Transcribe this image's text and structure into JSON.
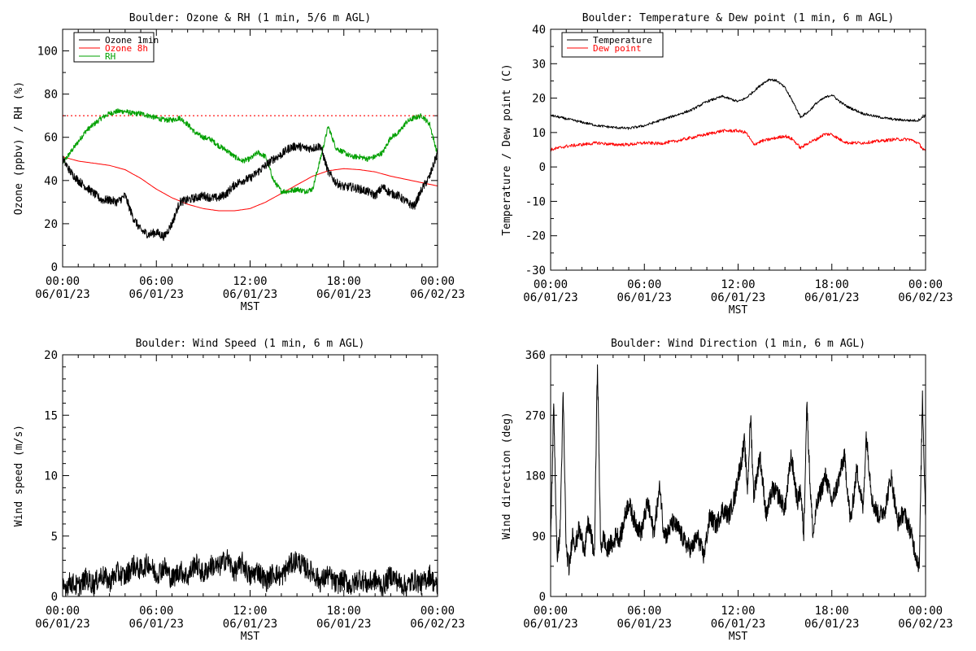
{
  "chart_data": [
    {
      "id": "ozone-rh",
      "type": "line",
      "title": "Boulder: Ozone & RH (1 min, 5/6 m AGL)",
      "ylabel": "Ozone (ppbv) / RH (%)",
      "xlabel": "MST",
      "ylim": [
        0,
        110
      ],
      "yticks": [
        0,
        20,
        40,
        60,
        80,
        100
      ],
      "ytick_labels": [
        "0",
        "20",
        "40",
        "60",
        "80",
        "100"
      ],
      "xlim": [
        0,
        24
      ],
      "xticks": [
        0,
        6,
        12,
        18,
        24
      ],
      "xtick_time_labels": [
        "00:00",
        "06:00",
        "12:00",
        "18:00",
        "00:00"
      ],
      "xtick_date_labels": [
        "06/01/23",
        "06/01/23",
        "06/01/23",
        "06/01/23",
        "06/02/23"
      ],
      "legend_position": "top-left",
      "reference_line": {
        "y": 70,
        "color": "#ff0000",
        "style": "dotted"
      },
      "series": [
        {
          "name": "Ozone 1min",
          "color": "#000000",
          "x": [
            0,
            0.5,
            1,
            1.5,
            2,
            2.5,
            3,
            3.5,
            4,
            4.5,
            5,
            5.5,
            6,
            6.5,
            7,
            7.5,
            8,
            8.5,
            9,
            9.5,
            10,
            10.5,
            11,
            11.5,
            12,
            12.5,
            13,
            13.5,
            14,
            14.5,
            15,
            15.5,
            16,
            16.5,
            17,
            17.5,
            18,
            18.5,
            19,
            19.5,
            20,
            20.5,
            21,
            21.5,
            22,
            22.5,
            23,
            23.5,
            24
          ],
          "values": [
            50,
            44,
            40,
            37,
            34,
            31,
            31,
            30,
            33,
            23,
            17,
            15,
            16,
            14,
            20,
            30,
            31,
            32,
            33,
            32,
            32,
            34,
            38,
            40,
            41,
            44,
            47,
            50,
            52,
            55,
            56,
            55,
            55,
            56,
            44,
            39,
            37,
            37,
            36,
            35,
            33,
            37,
            34,
            33,
            30,
            28,
            36,
            42,
            53
          ]
        },
        {
          "name": "Ozone 8h",
          "color": "#ff0000",
          "x": [
            0,
            1,
            2,
            3,
            4,
            5,
            6,
            7,
            8,
            9,
            10,
            11,
            12,
            13,
            14,
            15,
            16,
            17,
            18,
            19,
            20,
            21,
            22,
            23,
            24
          ],
          "values": [
            51,
            49,
            48,
            47,
            45,
            41,
            36,
            32,
            29,
            27,
            26,
            26,
            27,
            30,
            34,
            38,
            42,
            44.5,
            45.5,
            45,
            44,
            42,
            40.5,
            39,
            37.5
          ]
        },
        {
          "name": "RH",
          "color": "#00a000",
          "x": [
            0,
            0.5,
            1,
            1.5,
            2,
            2.5,
            3,
            3.5,
            4,
            4.5,
            5,
            5.5,
            6,
            6.5,
            7,
            7.5,
            8,
            8.5,
            9,
            9.5,
            10,
            10.5,
            11,
            11.5,
            12,
            12.5,
            13,
            13.5,
            14,
            14.5,
            15,
            15.5,
            16,
            16.5,
            17,
            17.5,
            18,
            18.5,
            19,
            19.5,
            20,
            20.5,
            21,
            21.5,
            22,
            22.5,
            23,
            23.5,
            24
          ],
          "values": [
            48,
            53,
            58,
            63,
            66,
            69,
            71,
            72,
            72,
            71,
            71,
            70,
            69,
            68,
            68,
            69,
            66,
            62,
            60,
            59,
            56,
            54,
            51,
            49,
            50,
            53,
            51,
            40,
            35,
            35,
            36,
            35,
            36,
            50,
            65,
            55,
            53,
            51,
            51,
            50,
            51,
            53,
            60,
            62,
            67,
            69,
            70,
            66,
            52
          ]
        }
      ]
    },
    {
      "id": "temp-dew",
      "type": "line",
      "title": "Boulder: Temperature & Dew point (1 min, 6 m AGL)",
      "ylabel": "Temperature / Dew point (C)",
      "xlabel": "MST",
      "ylim": [
        -30,
        40
      ],
      "yticks": [
        -30,
        -20,
        -10,
        0,
        10,
        20,
        30,
        40
      ],
      "ytick_labels": [
        "-30",
        "-20",
        "-10",
        "0",
        "10",
        "20",
        "30",
        "40"
      ],
      "xlim": [
        0,
        24
      ],
      "xticks": [
        0,
        6,
        12,
        18,
        24
      ],
      "xtick_time_labels": [
        "00:00",
        "06:00",
        "12:00",
        "18:00",
        "00:00"
      ],
      "xtick_date_labels": [
        "06/01/23",
        "06/01/23",
        "06/01/23",
        "06/01/23",
        "06/02/23"
      ],
      "legend_position": "top-left",
      "series": [
        {
          "name": "Temperature",
          "color": "#000000",
          "x": [
            0,
            1,
            2,
            3,
            4,
            5,
            6,
            7,
            8,
            9,
            10,
            11,
            12,
            12.5,
            13,
            13.5,
            14,
            14.5,
            15,
            15.5,
            16,
            16.5,
            17,
            17.5,
            18,
            18.5,
            19,
            20,
            21,
            22,
            23,
            23.5,
            24
          ],
          "values": [
            15,
            14,
            13,
            12,
            11.5,
            11.2,
            12,
            13.5,
            15,
            16.5,
            19,
            20.5,
            19,
            20,
            22,
            24,
            25.5,
            25,
            23,
            19,
            14.5,
            16,
            18.5,
            20,
            21,
            19,
            17.5,
            15.5,
            14.5,
            13.8,
            13.5,
            13.5,
            15
          ]
        },
        {
          "name": "Dew point",
          "color": "#ff0000",
          "x": [
            0,
            1,
            2,
            3,
            4,
            5,
            6,
            7,
            8,
            9,
            10,
            11,
            12,
            12.5,
            13,
            13.5,
            14,
            14.5,
            15,
            15.5,
            16,
            16.5,
            17,
            17.5,
            18,
            18.5,
            19,
            20,
            21,
            22,
            23,
            23.5,
            24
          ],
          "values": [
            5,
            6,
            6.5,
            7,
            6.5,
            6.5,
            7,
            6.8,
            7.5,
            8.5,
            9.5,
            10.5,
            10.5,
            10,
            6.5,
            7.5,
            8,
            8.5,
            9,
            8,
            5.5,
            7,
            8,
            9.5,
            9.5,
            8,
            7,
            7,
            7.5,
            8,
            8,
            7,
            4.5
          ]
        }
      ]
    },
    {
      "id": "wind-speed",
      "type": "line",
      "title": "Boulder: Wind Speed (1 min, 6 m AGL)",
      "ylabel": "Wind speed (m/s)",
      "xlabel": "MST",
      "ylim": [
        0,
        20
      ],
      "yticks": [
        0,
        5,
        10,
        15,
        20
      ],
      "ytick_labels": [
        "0",
        "5",
        "10",
        "15",
        "20"
      ],
      "xlim": [
        0,
        24
      ],
      "xticks": [
        0,
        6,
        12,
        18,
        24
      ],
      "xtick_time_labels": [
        "00:00",
        "06:00",
        "12:00",
        "18:00",
        "00:00"
      ],
      "xtick_date_labels": [
        "06/01/23",
        "06/01/23",
        "06/01/23",
        "06/01/23",
        "06/02/23"
      ],
      "series": [
        {
          "color": "#000000",
          "x": [
            0,
            0.5,
            1,
            1.5,
            2,
            2.5,
            3,
            3.5,
            4,
            4.5,
            5,
            5.5,
            6,
            6.5,
            7,
            7.5,
            8,
            8.5,
            9,
            9.5,
            10,
            10.5,
            11,
            11.5,
            12,
            12.5,
            13,
            13.5,
            14,
            14.5,
            15,
            15.5,
            16,
            16.5,
            17,
            17.5,
            18,
            18.5,
            19,
            19.5,
            20,
            20.5,
            21,
            21.5,
            22,
            22.5,
            23,
            23.5,
            24
          ],
          "values": [
            0.6,
            1.2,
            0.8,
            1.5,
            1.0,
            1.8,
            1.2,
            2.0,
            1.6,
            2.6,
            2.2,
            2.8,
            1.8,
            2.5,
            1.4,
            2.2,
            1.6,
            2.8,
            1.8,
            2.6,
            2.4,
            3.2,
            2.0,
            2.8,
            1.6,
            2.2,
            1.2,
            2.0,
            1.6,
            2.6,
            3.0,
            2.4,
            2.0,
            1.2,
            1.8,
            1.0,
            1.4,
            0.8,
            1.6,
            1.0,
            1.4,
            0.8,
            1.8,
            1.2,
            0.8,
            1.4,
            1.0,
            1.8,
            0.6
          ]
        }
      ]
    },
    {
      "id": "wind-dir",
      "type": "line",
      "title": "Boulder: Wind Direction (1 min, 6 m AGL)",
      "ylabel": "Wind direction (deg)",
      "xlabel": "MST",
      "ylim": [
        0,
        360
      ],
      "yticks": [
        0,
        90,
        180,
        270,
        360
      ],
      "ytick_labels": [
        "0",
        "90",
        "180",
        "270",
        "360"
      ],
      "xlim": [
        0,
        24
      ],
      "xticks": [
        0,
        6,
        12,
        18,
        24
      ],
      "xtick_time_labels": [
        "00:00",
        "06:00",
        "12:00",
        "18:00",
        "00:00"
      ],
      "xtick_date_labels": [
        "06/01/23",
        "06/01/23",
        "06/01/23",
        "06/01/23",
        "06/02/23"
      ],
      "series": [
        {
          "color": "#000000",
          "x": [
            0,
            0.2,
            0.4,
            0.6,
            0.8,
            1.0,
            1.2,
            1.4,
            1.6,
            1.8,
            2.0,
            2.2,
            2.4,
            2.6,
            2.8,
            3.0,
            3.2,
            3.4,
            3.6,
            3.8,
            4.0,
            4.2,
            4.4,
            4.6,
            4.8,
            5.0,
            5.4,
            5.8,
            6.2,
            6.6,
            7.0,
            7.2,
            7.4,
            7.8,
            8.2,
            8.6,
            9.0,
            9.4,
            9.8,
            10.2,
            10.6,
            11.0,
            11.4,
            11.8,
            12.0,
            12.2,
            12.4,
            12.6,
            12.8,
            13.0,
            13.4,
            13.8,
            14.2,
            14.6,
            15.0,
            15.4,
            15.8,
            16.0,
            16.2,
            16.4,
            16.6,
            16.8,
            17.0,
            17.2,
            17.6,
            18.0,
            18.4,
            18.8,
            19.2,
            19.6,
            20.0,
            20.2,
            20.6,
            21.0,
            21.4,
            21.8,
            22.2,
            22.6,
            23.0,
            23.2,
            23.4,
            23.6,
            23.8,
            24.0
          ],
          "values": [
            80,
            290,
            60,
            90,
            300,
            70,
            40,
            95,
            75,
            100,
            85,
            70,
            110,
            90,
            60,
            350,
            70,
            90,
            65,
            80,
            75,
            95,
            85,
            100,
            125,
            140,
            110,
            95,
            140,
            95,
            165,
            105,
            90,
            110,
            100,
            80,
            70,
            90,
            60,
            120,
            105,
            130,
            120,
            150,
            180,
            200,
            230,
            160,
            270,
            150,
            210,
            120,
            160,
            150,
            130,
            210,
            140,
            160,
            90,
            290,
            170,
            90,
            130,
            150,
            180,
            140,
            170,
            210,
            110,
            190,
            130,
            240,
            140,
            120,
            130,
            180,
            110,
            125,
            100,
            80,
            60,
            45,
            300,
            120
          ]
        }
      ]
    }
  ]
}
